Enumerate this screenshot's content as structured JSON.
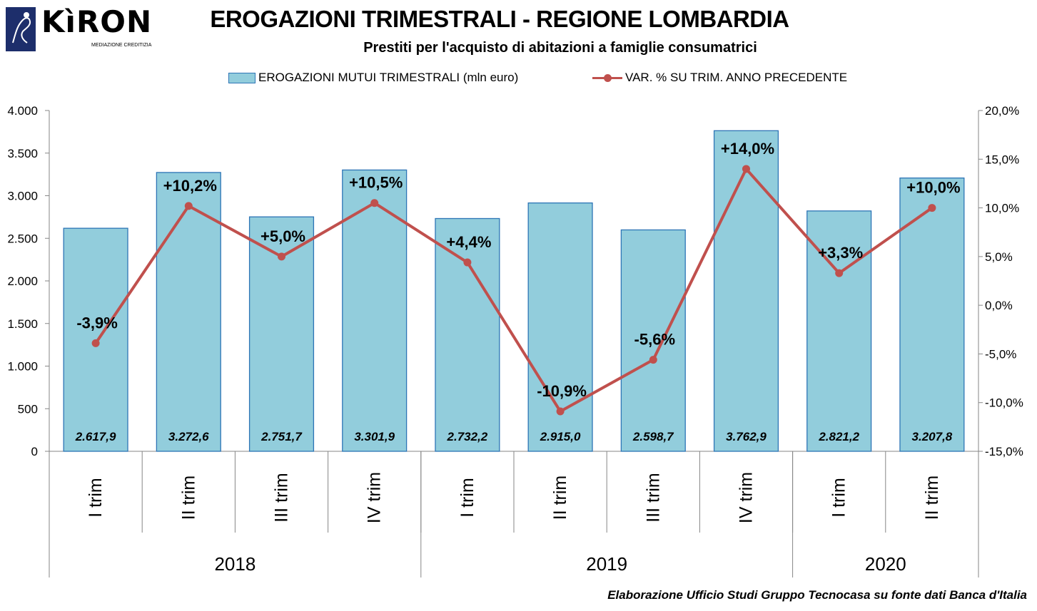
{
  "header": {
    "logo_text": "KìRON",
    "logo_tagline": "MEDIAZIONE CREDITIZIA",
    "title": "EROGAZIONI TRIMESTRALI - REGIONE LOMBARDIA",
    "subtitle": "Prestiti per l'acquisto di abitazioni a famiglie consumatrici"
  },
  "source": "Elaborazione Ufficio Studi Gruppo Tecnocasa su fonte dati Banca d'Italia",
  "chart_data": {
    "type": "bar",
    "categories": [
      "I trim",
      "II trim",
      "III trim",
      "IV trim",
      "I trim",
      "II trim",
      "III trim",
      "IV trim",
      "I trim",
      "II trim"
    ],
    "groups": [
      {
        "label": "2018",
        "count": 4
      },
      {
        "label": "2019",
        "count": 4
      },
      {
        "label": "2020",
        "count": 2
      }
    ],
    "series": [
      {
        "name": "EROGAZIONI MUTUI TRIMESTRALI (mln euro)",
        "type": "bar",
        "axis": "left",
        "color": "#92cddc",
        "values": [
          2617.9,
          3272.6,
          2751.7,
          3301.9,
          2732.2,
          2915.0,
          2598.7,
          3762.9,
          2821.2,
          3207.8
        ],
        "labels": [
          "2.617,9",
          "3.272,6",
          "2.751,7",
          "3.301,9",
          "2.732,2",
          "2.915,0",
          "2.598,7",
          "3.762,9",
          "2.821,2",
          "3.207,8"
        ]
      },
      {
        "name": "VAR. % SU TRIM. ANNO PRECEDENTE",
        "type": "line",
        "axis": "right",
        "color": "#c0504d",
        "values": [
          -3.9,
          10.2,
          5.0,
          10.5,
          4.4,
          -10.9,
          -5.6,
          14.0,
          3.3,
          10.0
        ],
        "labels": [
          "-3,9%",
          "+10,2%",
          "+5,0%",
          "+10,5%",
          "+4,4%",
          "-10,9%",
          "-5,6%",
          "+14,0%",
          "+3,3%",
          "+10,0%"
        ]
      }
    ],
    "y_left": {
      "ylim": [
        0,
        4000
      ],
      "ticks": [
        0,
        500,
        1000,
        1500,
        2000,
        2500,
        3000,
        3500,
        4000
      ],
      "tick_labels": [
        "0",
        "500",
        "1.000",
        "1.500",
        "2.000",
        "2.500",
        "3.000",
        "3.500",
        "4.000"
      ]
    },
    "y_right": {
      "ylim": [
        -15,
        20
      ],
      "ticks": [
        -15,
        -10,
        -5,
        0,
        5,
        10,
        15,
        20
      ],
      "tick_labels": [
        "-15,0%",
        "-10,0%",
        "-5,0%",
        "0,0%",
        "5,0%",
        "10,0%",
        "15,0%",
        "20,0%"
      ]
    },
    "grid": false,
    "legend": "top"
  }
}
